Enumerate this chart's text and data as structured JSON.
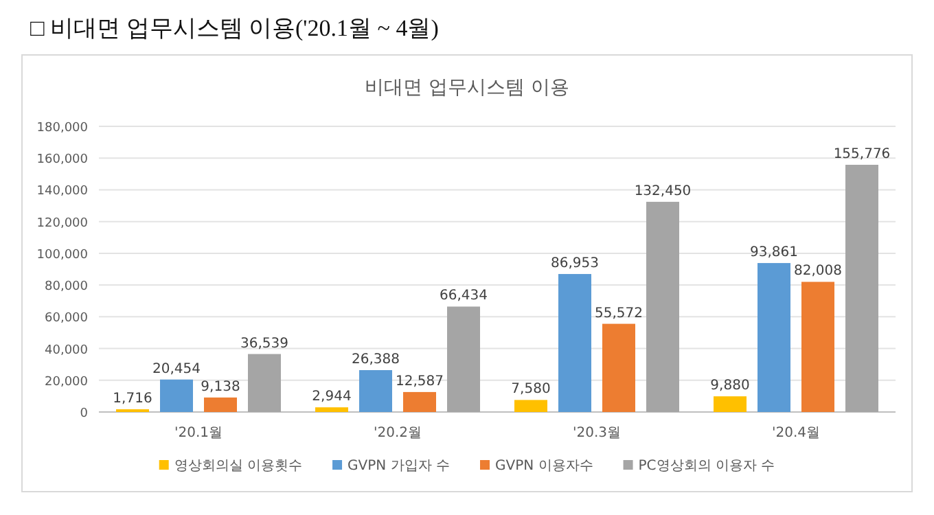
{
  "chart_data": {
    "type": "bar",
    "title": "□ 비대면 업무시스템 이용('20.1월 ~ 4월)",
    "subtitle": "비대면 업무시스템 이용",
    "categories": [
      "'20.1월",
      "'20.2월",
      "'20.3월",
      "'20.4월"
    ],
    "series": [
      {
        "name": "영상회의실 이용횟수",
        "color": "#ffc000",
        "values": [
          1716,
          2944,
          7580,
          9880
        ],
        "value_labels": [
          "1,716",
          "2,944",
          "7,580",
          "9,880"
        ]
      },
      {
        "name": "GVPN 가입자 수",
        "color": "#5b9bd5",
        "values": [
          20454,
          26388,
          86953,
          93861
        ],
        "value_labels": [
          "20,454",
          "26,388",
          "86,953",
          "93,861"
        ]
      },
      {
        "name": "GVPN 이용자수",
        "color": "#ed7d31",
        "values": [
          9138,
          12587,
          55572,
          82008
        ],
        "value_labels": [
          "9,138",
          "12,587",
          "55,572",
          "82,008"
        ]
      },
      {
        "name": "PC영상회의 이용자 수",
        "color": "#a5a5a5",
        "values": [
          36539,
          66434,
          132450,
          155776
        ],
        "value_labels": [
          "36,539",
          "66,434",
          "132,450",
          "155,776"
        ]
      }
    ],
    "ylim": [
      0,
      180000
    ],
    "yticks": [
      0,
      {
        "value": 20000,
        "label": "20,000"
      },
      {
        "value": 40000,
        "label": "40,000"
      },
      {
        "value": 60000,
        "label": "60,000"
      },
      {
        "value": 80000,
        "label": "80,000"
      },
      {
        "value": 100000,
        "label": "100,000"
      },
      {
        "value": 120000,
        "label": "120,000"
      },
      {
        "value": 140000,
        "label": "140,000"
      },
      {
        "value": 160000,
        "label": "160,000"
      },
      {
        "value": 180000,
        "label": "180,000"
      }
    ],
    "grid": "y",
    "legend": "bottom"
  }
}
